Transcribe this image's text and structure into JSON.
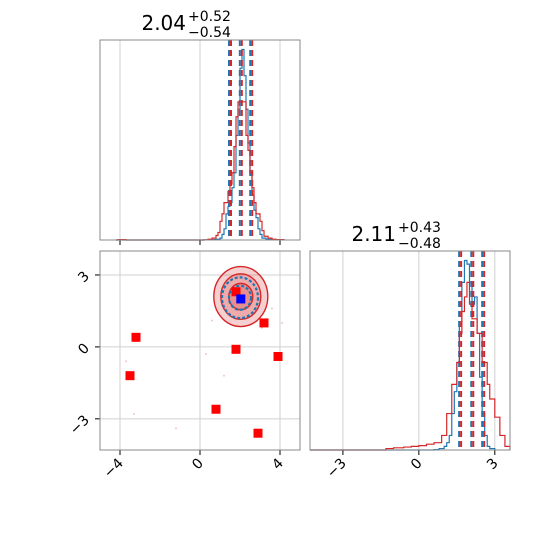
{
  "chart_data": [
    {
      "type": "line",
      "panel": "top-left",
      "title": {
        "value": "2.04",
        "plus": "+0.52",
        "minus": "−0.54"
      },
      "xlim": [
        -5,
        5
      ],
      "x_ticks": [
        -4,
        0,
        4
      ],
      "grid": true,
      "series": [
        {
          "color": "#1f77b4",
          "steps": [
            [
              -4.2,
              0
            ],
            [
              -4.1,
              0.005
            ],
            [
              -4.0,
              0.005
            ],
            [
              -3.9,
              0
            ],
            [
              0.0,
              0
            ],
            [
              0.2,
              0.005
            ],
            [
              0.4,
              0.005
            ],
            [
              0.6,
              0.01
            ],
            [
              0.8,
              0.02
            ],
            [
              1.0,
              0.05
            ],
            [
              1.1,
              0.15
            ],
            [
              1.2,
              0.3
            ],
            [
              1.3,
              0.7
            ],
            [
              1.4,
              0.9
            ],
            [
              1.5,
              1.0
            ],
            [
              1.6,
              1.4
            ],
            [
              1.7,
              1.8
            ],
            [
              1.8,
              2.8
            ],
            [
              1.9,
              3.5
            ],
            [
              2.0,
              4.6
            ],
            [
              2.1,
              5.1
            ],
            [
              2.2,
              4.4
            ],
            [
              2.3,
              3.5
            ],
            [
              2.4,
              2.6
            ],
            [
              2.5,
              1.8
            ],
            [
              2.6,
              1.2
            ],
            [
              2.7,
              0.8
            ],
            [
              2.8,
              0.6
            ],
            [
              2.9,
              0.3
            ],
            [
              3.0,
              0.15
            ],
            [
              3.1,
              0.05
            ],
            [
              3.3,
              0.02
            ],
            [
              3.6,
              0.005
            ],
            [
              4.0,
              0.0
            ]
          ],
          "median": 2.04,
          "lower": 1.5,
          "upper": 2.56
        },
        {
          "color": "#d62728",
          "steps": [
            [
              -4.2,
              0
            ],
            [
              -4.1,
              0.01
            ],
            [
              -3.9,
              0.01
            ],
            [
              -3.7,
              0
            ],
            [
              0.0,
              0
            ],
            [
              0.2,
              0.005
            ],
            [
              0.4,
              0.02
            ],
            [
              0.6,
              0.05
            ],
            [
              0.8,
              0.12
            ],
            [
              0.9,
              0.2
            ],
            [
              1.0,
              0.5
            ],
            [
              1.1,
              0.7
            ],
            [
              1.2,
              1.0
            ],
            [
              1.4,
              1.3
            ],
            [
              1.5,
              1.5
            ],
            [
              1.6,
              1.8
            ],
            [
              1.7,
              2.5
            ],
            [
              1.8,
              3.3
            ],
            [
              1.9,
              3.7
            ],
            [
              2.0,
              3.7
            ],
            [
              2.2,
              3.7
            ],
            [
              2.3,
              2.8
            ],
            [
              2.4,
              2.4
            ],
            [
              2.5,
              1.8
            ],
            [
              2.6,
              1.4
            ],
            [
              2.7,
              1.0
            ],
            [
              2.8,
              0.7
            ],
            [
              3.0,
              0.5
            ],
            [
              3.1,
              0.25
            ],
            [
              3.2,
              0.1
            ],
            [
              3.4,
              0.05
            ],
            [
              3.6,
              0.02
            ],
            [
              3.8,
              0.01
            ],
            [
              4.2,
              0.0
            ]
          ],
          "median": 2.04,
          "lower": 1.5,
          "upper": 2.56
        }
      ]
    },
    {
      "type": "scatter",
      "panel": "bottom-left",
      "xlim": [
        -5,
        5
      ],
      "ylim": [
        -4.3,
        4.0
      ],
      "x_ticks": [
        -4,
        0,
        4
      ],
      "y_ticks": [
        -3,
        0,
        3
      ],
      "grid": true,
      "points": {
        "red_squares": [
          [
            -3.2,
            0.4
          ],
          [
            -3.5,
            -1.2
          ],
          [
            1.8,
            -0.1
          ],
          [
            3.2,
            1.0
          ],
          [
            3.9,
            -0.4
          ],
          [
            0.8,
            -2.6
          ],
          [
            2.9,
            -3.6
          ],
          [
            1.8,
            2.3
          ]
        ],
        "blue_square": [
          2.04,
          2.0
        ],
        "faint_points": [
          [
            -3.7,
            -0.6
          ],
          [
            -3.3,
            -2.8
          ],
          [
            -1.2,
            -3.4
          ],
          [
            0.3,
            -0.3
          ],
          [
            2.6,
            1.4
          ],
          [
            3.6,
            1.6
          ],
          [
            4.1,
            1.0
          ],
          [
            3.1,
            0.8
          ],
          [
            1.2,
            -1.2
          ],
          [
            0.6,
            1.1
          ]
        ]
      },
      "contours": [
        {
          "fill": "#d62728",
          "stroke": "#d62728",
          "cx": 2.04,
          "cy": 2.1,
          "rx": [
            1.35,
            1.0,
            0.6
          ],
          "ry": [
            1.25,
            0.95,
            0.55
          ]
        },
        {
          "stroke": "#1f77b4",
          "cx": 2.0,
          "cy": 2.05,
          "rx": [
            0.9,
            0.55
          ],
          "ry": [
            0.85,
            0.5
          ]
        }
      ]
    },
    {
      "type": "line",
      "panel": "bottom-right",
      "title": {
        "value": "2.11",
        "plus": "+0.43",
        "minus": "−0.48"
      },
      "xlim": [
        -4.3,
        3.6
      ],
      "x_ticks": [
        -3,
        0,
        3
      ],
      "grid": true,
      "series": [
        {
          "color": "#1f77b4",
          "steps": [
            [
              -4.3,
              0
            ],
            [
              0.0,
              0
            ],
            [
              0.6,
              0.005
            ],
            [
              0.8,
              0.02
            ],
            [
              1.0,
              0.05
            ],
            [
              1.1,
              0.1
            ],
            [
              1.2,
              0.2
            ],
            [
              1.3,
              0.5
            ],
            [
              1.4,
              0.8
            ],
            [
              1.5,
              1.2
            ],
            [
              1.6,
              1.7
            ],
            [
              1.7,
              2.3
            ],
            [
              1.8,
              2.6
            ],
            [
              1.9,
              2.55
            ],
            [
              2.0,
              2.3
            ],
            [
              2.1,
              2.0
            ],
            [
              2.2,
              2.1
            ],
            [
              2.3,
              1.6
            ],
            [
              2.4,
              1.0
            ],
            [
              2.5,
              0.5
            ],
            [
              2.6,
              0.2
            ],
            [
              2.7,
              0.05
            ],
            [
              2.8,
              0.02
            ],
            [
              3.0,
              0.0
            ]
          ],
          "median": 2.11,
          "lower": 1.63,
          "upper": 2.54
        },
        {
          "color": "#d62728",
          "steps": [
            [
              -4.3,
              0
            ],
            [
              -1.4,
              0
            ],
            [
              -1.3,
              0.02
            ],
            [
              -1.0,
              0.03
            ],
            [
              -0.6,
              0.04
            ],
            [
              -0.3,
              0.05
            ],
            [
              0.0,
              0.06
            ],
            [
              0.3,
              0.08
            ],
            [
              0.6,
              0.1
            ],
            [
              0.9,
              0.2
            ],
            [
              1.1,
              0.5
            ],
            [
              1.3,
              0.9
            ],
            [
              1.5,
              1.2
            ],
            [
              1.6,
              1.6
            ],
            [
              1.7,
              1.9
            ],
            [
              1.8,
              2.1
            ],
            [
              1.9,
              2.3
            ],
            [
              2.0,
              2.0
            ],
            [
              2.1,
              1.8
            ],
            [
              2.3,
              1.6
            ],
            [
              2.5,
              1.2
            ],
            [
              2.7,
              0.9
            ],
            [
              2.8,
              0.7
            ],
            [
              3.0,
              0.45
            ],
            [
              3.2,
              0.2
            ],
            [
              3.4,
              0.05
            ],
            [
              3.6,
              0.0
            ]
          ],
          "median": 2.11,
          "lower": 1.63,
          "upper": 2.54
        }
      ]
    }
  ]
}
